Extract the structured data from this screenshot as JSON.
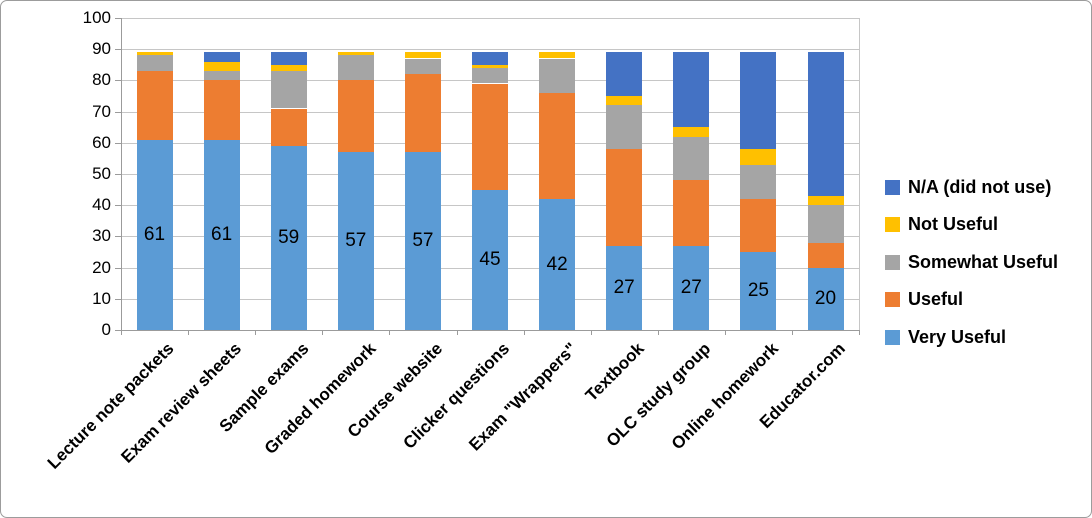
{
  "chart_data": {
    "type": "bar",
    "stacked": true,
    "title": "",
    "categories": [
      "Lecture note packets",
      "Exam review sheets",
      "Sample exams",
      "Graded homework",
      "Course website",
      "Clicker questions",
      "Exam \"Wrappers\"",
      "Textbook",
      "OLC study group",
      "Online homework",
      "Educator.com"
    ],
    "series": [
      {
        "name": "Very Useful",
        "color": "#5B9BD5",
        "data_labels": true,
        "values": [
          61,
          61,
          59,
          57,
          57,
          45,
          42,
          27,
          27,
          25,
          20
        ]
      },
      {
        "name": "Useful",
        "color": "#ED7D31",
        "values": [
          22,
          19,
          12,
          23,
          25,
          34,
          34,
          31,
          21,
          17,
          8
        ]
      },
      {
        "name": "Somewhat Useful",
        "color": "#A5A5A5",
        "values": [
          5,
          3,
          12,
          8,
          5,
          5,
          11,
          14,
          14,
          11,
          12
        ]
      },
      {
        "name": "Not Useful",
        "color": "#FFC000",
        "values": [
          1,
          3,
          2,
          1,
          2,
          1,
          2,
          3,
          3,
          5,
          3
        ]
      },
      {
        "name": "N/A (did not use)",
        "color": "#4472C4",
        "values": [
          0,
          3,
          4,
          0,
          0,
          4,
          0,
          14,
          24,
          31,
          46
        ]
      }
    ],
    "y_axis": {
      "min": 0,
      "max": 100,
      "step": 10,
      "tick_labels": [
        "0",
        "10",
        "20",
        "30",
        "40",
        "50",
        "60",
        "70",
        "80",
        "90",
        "100"
      ]
    },
    "x_axis": {
      "label_rotation_deg": 45
    },
    "legend": {
      "position": "right",
      "labels_top_to_bottom": [
        "N/A (did not use)",
        "Not Useful",
        "Somewhat Useful",
        "Useful",
        "Very Useful"
      ]
    },
    "grid": true,
    "gridline_color": "#c6c6c6",
    "axis_color": "#9b9b9b",
    "text_color": "#000000",
    "background": "#ffffff"
  }
}
